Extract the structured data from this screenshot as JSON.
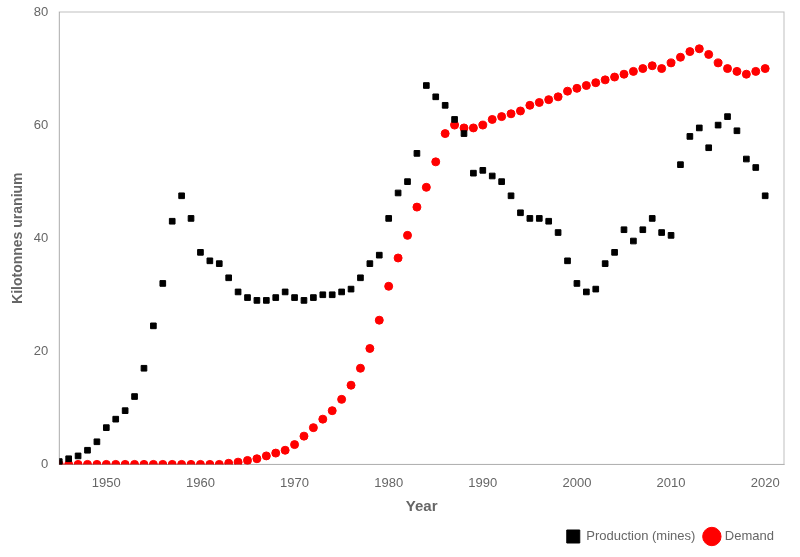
{
  "chart_data": {
    "type": "scatter",
    "xlabel": "Year",
    "ylabel": "Kilotonnes uranium",
    "xlim": [
      1945,
      2022
    ],
    "ylim": [
      0,
      80
    ],
    "xticks": [
      1950,
      1960,
      1970,
      1980,
      1990,
      2000,
      2010,
      2020
    ],
    "yticks": [
      0,
      20,
      40,
      60,
      80
    ],
    "grid": false,
    "legend": "lower right",
    "series": [
      {
        "name": "Production (mines)",
        "color": "#000000",
        "marker": "square",
        "x": [
          1945,
          1946,
          1947,
          1948,
          1949,
          1950,
          1951,
          1952,
          1953,
          1954,
          1955,
          1956,
          1957,
          1958,
          1959,
          1960,
          1961,
          1962,
          1963,
          1964,
          1965,
          1966,
          1967,
          1968,
          1969,
          1970,
          1971,
          1972,
          1973,
          1974,
          1975,
          1976,
          1977,
          1978,
          1979,
          1980,
          1981,
          1982,
          1983,
          1984,
          1985,
          1986,
          1987,
          1988,
          1989,
          1990,
          1991,
          1992,
          1993,
          1994,
          1995,
          1996,
          1997,
          1998,
          1999,
          2000,
          2001,
          2002,
          2003,
          2004,
          2005,
          2006,
          2007,
          2008,
          2009,
          2010,
          2011,
          2012,
          2013,
          2014,
          2015,
          2016,
          2017,
          2018,
          2019,
          2020
        ],
        "values": [
          0.5,
          1.0,
          1.5,
          2.5,
          4.0,
          6.5,
          8.0,
          9.5,
          12.0,
          17.0,
          24.5,
          32.0,
          43.0,
          47.5,
          43.5,
          37.5,
          36.0,
          35.5,
          33.0,
          30.5,
          29.5,
          29.0,
          29.0,
          29.5,
          30.5,
          29.5,
          29.0,
          29.5,
          30.0,
          30.0,
          30.5,
          31.0,
          33.0,
          35.5,
          37.0,
          43.5,
          48.0,
          50.0,
          55.0,
          67.0,
          65.0,
          63.5,
          61.0,
          58.5,
          51.5,
          52.0,
          51.0,
          50.0,
          47.5,
          44.5,
          43.5,
          43.5,
          43.0,
          41.0,
          36.0,
          32.0,
          30.5,
          31.0,
          35.5,
          37.5,
          41.5,
          39.5,
          41.5,
          43.5,
          41.0,
          40.5,
          53.0,
          58.0,
          59.5,
          56.0,
          60.0,
          61.5,
          59.0,
          54.0,
          52.5,
          47.5
        ]
      },
      {
        "name": "Demand",
        "color": "#ff0000",
        "marker": "circle",
        "x": [
          1945,
          1946,
          1947,
          1948,
          1949,
          1950,
          1951,
          1952,
          1953,
          1954,
          1955,
          1956,
          1957,
          1958,
          1959,
          1960,
          1961,
          1962,
          1963,
          1964,
          1965,
          1966,
          1967,
          1968,
          1969,
          1970,
          1971,
          1972,
          1973,
          1974,
          1975,
          1976,
          1977,
          1978,
          1979,
          1980,
          1981,
          1982,
          1983,
          1984,
          1985,
          1986,
          1987,
          1988,
          1989,
          1990,
          1991,
          1992,
          1993,
          1994,
          1995,
          1996,
          1997,
          1998,
          1999,
          2000,
          2001,
          2002,
          2003,
          2004,
          2005,
          2006,
          2007,
          2008,
          2009,
          2010,
          2011,
          2012,
          2013,
          2014,
          2015,
          2016,
          2017,
          2018,
          2019,
          2020
        ],
        "values": [
          0.0,
          0.0,
          0.0,
          0.0,
          0.0,
          0.0,
          0.0,
          0.0,
          0.0,
          0.0,
          0.0,
          0.0,
          0.0,
          0.0,
          0.0,
          0.0,
          0.0,
          0.0,
          0.2,
          0.4,
          0.7,
          1.0,
          1.5,
          2.0,
          2.5,
          3.5,
          5.0,
          6.5,
          8.0,
          9.5,
          11.5,
          14.0,
          17.0,
          20.5,
          25.5,
          31.5,
          36.5,
          40.5,
          45.5,
          49.0,
          53.5,
          58.5,
          60.0,
          59.5,
          59.5,
          60.0,
          61.0,
          61.5,
          62.0,
          62.5,
          63.5,
          64.0,
          64.5,
          65.0,
          66.0,
          66.5,
          67.0,
          67.5,
          68.0,
          68.5,
          69.0,
          69.5,
          70.0,
          70.5,
          70.0,
          71.0,
          72.0,
          73.0,
          73.5,
          72.5,
          71.0,
          70.0,
          69.5,
          69.0,
          69.5,
          70.0
        ]
      }
    ]
  }
}
